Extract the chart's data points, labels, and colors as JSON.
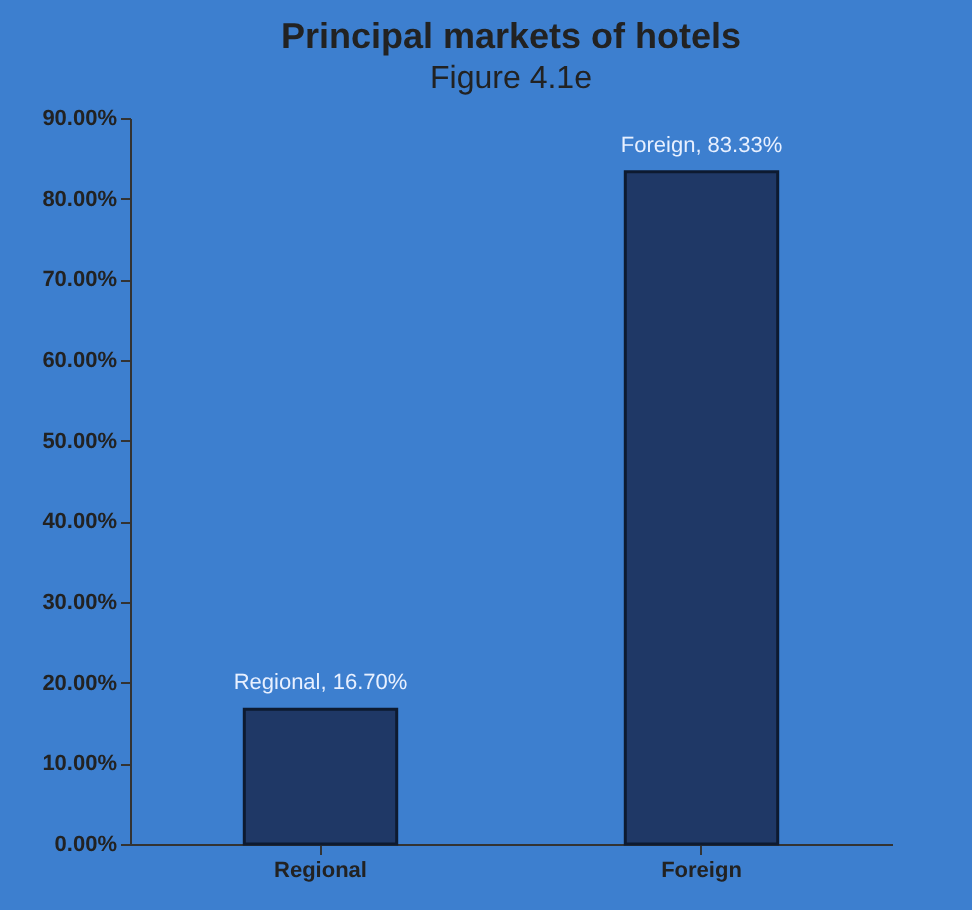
{
  "chart_data": {
    "type": "bar",
    "title": "Principal markets of hotels",
    "subtitle": "Figure 4.1e",
    "categories": [
      "Regional",
      "Foreign"
    ],
    "values": [
      16.7,
      83.33
    ],
    "value_labels": [
      "Regional, 16.70%",
      "Foreign, 83.33%"
    ],
    "color": "#1f3866",
    "ylim": [
      0,
      90
    ],
    "yticks": [
      {
        "value": 0,
        "label": "0.00%"
      },
      {
        "value": 10,
        "label": "10.00%"
      },
      {
        "value": 20,
        "label": "20.00%"
      },
      {
        "value": 30,
        "label": "30.00%"
      },
      {
        "value": 40,
        "label": "40.00%"
      },
      {
        "value": 50,
        "label": "50.00%"
      },
      {
        "value": 60,
        "label": "60.00%"
      },
      {
        "value": 70,
        "label": "70.00%"
      },
      {
        "value": 80,
        "label": "80.00%"
      },
      {
        "value": 90,
        "label": "90.00%"
      }
    ],
    "grid": false
  }
}
